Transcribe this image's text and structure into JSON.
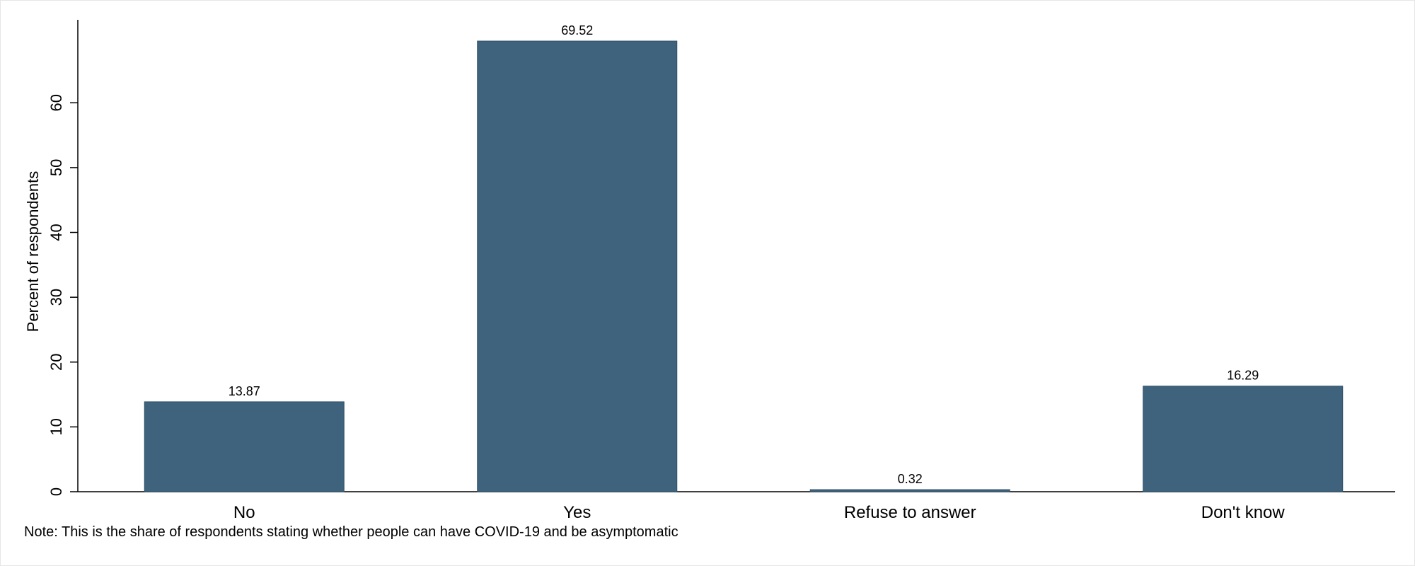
{
  "chart_data": {
    "type": "bar",
    "categories": [
      "No",
      "Yes",
      "Refuse to answer",
      "Don't know"
    ],
    "values": [
      13.87,
      69.52,
      0.32,
      16.29
    ],
    "value_labels": [
      "13.87",
      "69.52",
      "0.32",
      "16.29"
    ],
    "ylabel": "Percent of respondents",
    "xlabel": "",
    "yticks": [
      0,
      10,
      20,
      30,
      40,
      50,
      60
    ],
    "ylim": [
      0,
      72.8
    ],
    "grid": false,
    "bar_color": "#3f637d"
  },
  "note": "Note: This is the share of respondents stating whether people can have COVID-19 and be asymptomatic"
}
